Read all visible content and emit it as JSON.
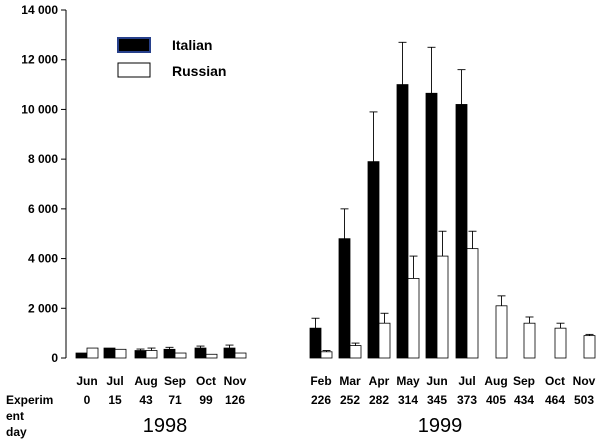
{
  "chart_data": {
    "type": "bar",
    "title": "",
    "xlabel": "",
    "ylabel": "",
    "ylim": [
      0,
      14000
    ],
    "yticks": [
      "0",
      "2 000",
      "4 000",
      "6 000",
      "8 000",
      "10 000",
      "12 000",
      "14 000"
    ],
    "ytick_values": [
      0,
      2000,
      4000,
      6000,
      8000,
      10000,
      12000,
      14000
    ],
    "grid": false,
    "legend_position": "top-left",
    "categories": [
      "Jun",
      "Jul",
      "Aug",
      "Sep",
      "Oct",
      "Nov",
      "Feb",
      "Mar",
      "Apr",
      "May",
      "Jun",
      "Jul",
      "Aug",
      "Sep",
      "Oct",
      "Nov"
    ],
    "experiment_days": [
      "0",
      "15",
      "43",
      "71",
      "99",
      "126",
      "226",
      "252",
      "282",
      "314",
      "345",
      "373",
      "405",
      "434",
      "464",
      "503"
    ],
    "row_label": "Experiment day",
    "years": [
      "1998",
      "1999"
    ],
    "year_groups": [
      [
        0,
        5
      ],
      [
        6,
        15
      ]
    ],
    "series": [
      {
        "name": "Italian",
        "color": "#000000",
        "values": [
          200,
          400,
          300,
          350,
          400,
          400,
          1200,
          4800,
          7900,
          11000,
          10650,
          10200,
          null,
          null,
          null,
          null
        ],
        "errors": [
          0,
          0,
          60,
          80,
          80,
          120,
          400,
          1200,
          2000,
          1700,
          1850,
          1400,
          null,
          null,
          null,
          null
        ]
      },
      {
        "name": "Russian",
        "color": "#ffffff",
        "values": [
          400,
          350,
          300,
          200,
          150,
          200,
          250,
          500,
          1400,
          3200,
          4100,
          4400,
          2100,
          1400,
          1200,
          900
        ],
        "errors": [
          0,
          0,
          100,
          0,
          0,
          0,
          50,
          100,
          400,
          900,
          1000,
          700,
          400,
          250,
          200,
          50
        ]
      }
    ]
  }
}
